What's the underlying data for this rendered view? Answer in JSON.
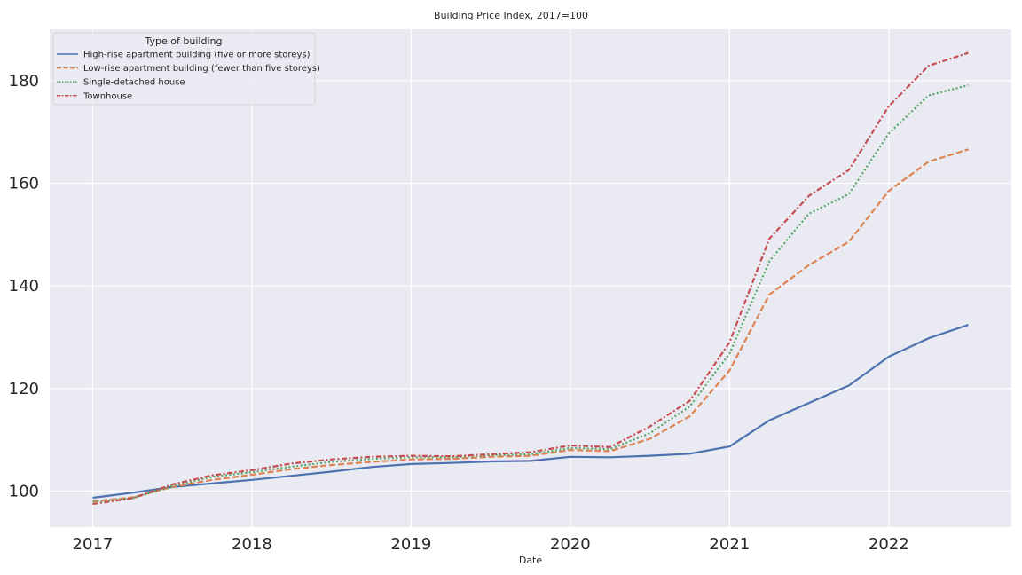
{
  "chart_data": {
    "type": "line",
    "title": "Building Price Index, 2017=100",
    "xlabel": "Date",
    "ylabel": "",
    "x_tick_labels": [
      "2017",
      "2018",
      "2019",
      "2020",
      "2021",
      "2022"
    ],
    "y_tick_labels": [
      "100",
      "120",
      "140",
      "160",
      "180"
    ],
    "ylim": [
      93,
      190
    ],
    "xlim": [
      2016.73,
      2022.77
    ],
    "grid": true,
    "legend": {
      "title": "Type of building",
      "position": "top-left"
    },
    "x": [
      2017.0,
      2017.25,
      2017.5,
      2017.75,
      2018.0,
      2018.25,
      2018.5,
      2018.75,
      2019.0,
      2019.25,
      2019.5,
      2019.75,
      2020.0,
      2020.25,
      2020.5,
      2020.75,
      2021.0,
      2021.25,
      2021.5,
      2021.75,
      2022.0,
      2022.25,
      2022.5
    ],
    "series": [
      {
        "name": "High-rise apartment building (five or more storeys)",
        "color": "#4c72b0",
        "style": "solid",
        "values": [
          98.7,
          99.7,
          100.8,
          101.5,
          102.2,
          103.0,
          103.8,
          104.7,
          105.3,
          105.5,
          105.8,
          105.9,
          106.7,
          106.6,
          106.9,
          107.3,
          108.7,
          113.8,
          117.2,
          120.6,
          126.2,
          129.8,
          132.4
        ]
      },
      {
        "name": "Low-rise apartment building (fewer than five storeys)",
        "color": "#dd8452",
        "style": "dashed",
        "values": [
          98.0,
          98.8,
          100.8,
          102.2,
          103.2,
          104.3,
          105.1,
          105.7,
          106.2,
          106.3,
          106.7,
          106.9,
          108.0,
          107.8,
          110.2,
          114.6,
          123.5,
          138.3,
          144.1,
          148.6,
          158.5,
          164.2,
          166.6
        ]
      },
      {
        "name": "Single-detached house",
        "color": "#55a868",
        "style": "dotted",
        "values": [
          97.9,
          98.6,
          101.0,
          102.8,
          103.7,
          104.8,
          105.7,
          106.3,
          106.6,
          106.6,
          107.0,
          107.2,
          108.4,
          108.2,
          111.3,
          116.5,
          126.8,
          144.8,
          154.1,
          157.9,
          169.7,
          177.1,
          179.1
        ]
      },
      {
        "name": "Townhouse",
        "color": "#c44e52",
        "style": "dashdot",
        "values": [
          97.5,
          98.6,
          101.3,
          103.1,
          104.1,
          105.4,
          106.2,
          106.7,
          106.9,
          106.8,
          107.2,
          107.6,
          108.9,
          108.6,
          112.6,
          117.6,
          129.0,
          149.2,
          157.6,
          162.6,
          175.0,
          182.9,
          185.4
        ]
      }
    ]
  }
}
